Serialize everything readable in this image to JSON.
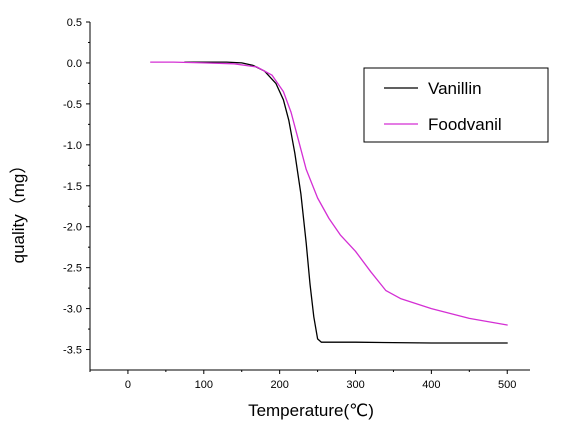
{
  "chart_data": {
    "type": "line",
    "title": "",
    "xlabel": "Temperature(℃)",
    "ylabel": "quality（mg）",
    "xlim": [
      -50,
      530
    ],
    "ylim": [
      -3.75,
      0.5
    ],
    "xticks": [
      0,
      100,
      200,
      300,
      400,
      500
    ],
    "yticks": [
      0.5,
      0.0,
      -0.5,
      -1.0,
      -1.5,
      -2.0,
      -2.5,
      -3.0,
      -3.5
    ],
    "ytick_labels": [
      "0.5",
      "0.0",
      "-0.5",
      "-1.0",
      "-1.5",
      "-2.0",
      "-2.5",
      "-3.0",
      "-3.5"
    ],
    "grid": false,
    "legend": "top-right",
    "series": [
      {
        "name": "Vanillin",
        "color": "#000000",
        "x": [
          75,
          100,
          130,
          150,
          165,
          180,
          195,
          205,
          212,
          220,
          228,
          235,
          240,
          245,
          250,
          255,
          260,
          300,
          400,
          500
        ],
        "y": [
          0.01,
          0.01,
          0.01,
          0.0,
          -0.03,
          -0.1,
          -0.25,
          -0.45,
          -0.7,
          -1.1,
          -1.6,
          -2.2,
          -2.7,
          -3.1,
          -3.37,
          -3.41,
          -3.41,
          -3.41,
          -3.42,
          -3.42
        ]
      },
      {
        "name": "Foodvanil",
        "color": "#d42fd4",
        "x": [
          30,
          60,
          100,
          140,
          170,
          190,
          205,
          215,
          225,
          235,
          250,
          265,
          280,
          300,
          320,
          340,
          360,
          400,
          450,
          500
        ],
        "y": [
          0.01,
          0.01,
          0.0,
          -0.01,
          -0.05,
          -0.15,
          -0.35,
          -0.6,
          -0.95,
          -1.3,
          -1.65,
          -1.9,
          -2.1,
          -2.3,
          -2.55,
          -2.78,
          -2.88,
          -3.0,
          -3.12,
          -3.2
        ]
      }
    ]
  }
}
